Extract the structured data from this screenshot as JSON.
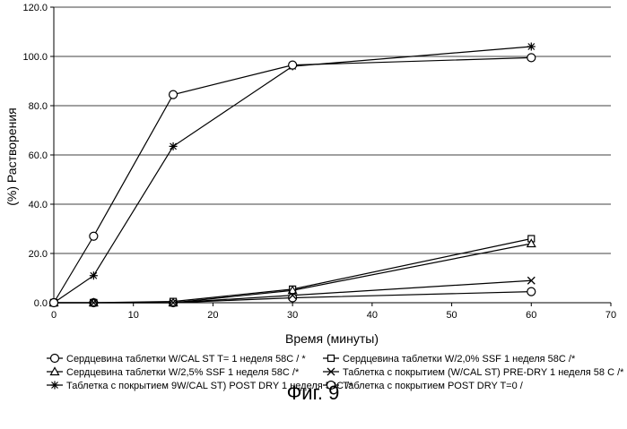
{
  "chart_data": {
    "type": "line",
    "title": "",
    "xlabel": "Время (минуты)",
    "ylabel": "(%) Растворения",
    "xlim": [
      0,
      70
    ],
    "ylim": [
      0,
      120
    ],
    "x_ticks": [
      "0",
      "10",
      "20",
      "30",
      "40",
      "50",
      "60",
      "70"
    ],
    "y_ticks": [
      "0.0",
      "20.0",
      "40.0",
      "60.0",
      "80.0",
      "100.0",
      "120.0"
    ],
    "grid": "horizontal",
    "legend_position": "bottom",
    "series": [
      {
        "name": "Сердцевина таблетки W/CAL ST T= 1 неделя 58C / *",
        "marker": "circle",
        "x": [
          0,
          5,
          15,
          30,
          60
        ],
        "y": [
          0,
          0,
          0,
          2,
          4.5
        ]
      },
      {
        "name": "Сердцевина таблетки W/2,0% SSF 1 неделя 58C /*",
        "marker": "square",
        "x": [
          0,
          5,
          15,
          30,
          60
        ],
        "y": [
          0,
          0,
          0.5,
          5.5,
          26
        ]
      },
      {
        "name": "Сердцевина таблетки W/2,5% SSF 1 неделя 58C /*",
        "marker": "triangle",
        "x": [
          0,
          5,
          15,
          30,
          60
        ],
        "y": [
          0,
          0,
          0,
          5,
          24
        ]
      },
      {
        "name": "Таблетка с покрытием (W/CAL ST) PRE-DRY 1 неделя 58 C /*",
        "marker": "x",
        "x": [
          0,
          5,
          15,
          30,
          60
        ],
        "y": [
          0,
          0,
          0,
          3,
          9
        ]
      },
      {
        "name": "Таблетка с покрытием 9W/CAL ST) POST DRY 1 неделя 58C /*",
        "marker": "star",
        "x": [
          0,
          5,
          15,
          30,
          60
        ],
        "y": [
          0,
          11,
          63.5,
          96,
          104
        ]
      },
      {
        "name": "Таблетка с покрытием POST DRY T=0 /",
        "marker": "circle",
        "x": [
          0,
          5,
          15,
          30,
          60
        ],
        "y": [
          0,
          27,
          84.5,
          96.5,
          99.5
        ]
      }
    ]
  },
  "caption": "Фиг. 9"
}
